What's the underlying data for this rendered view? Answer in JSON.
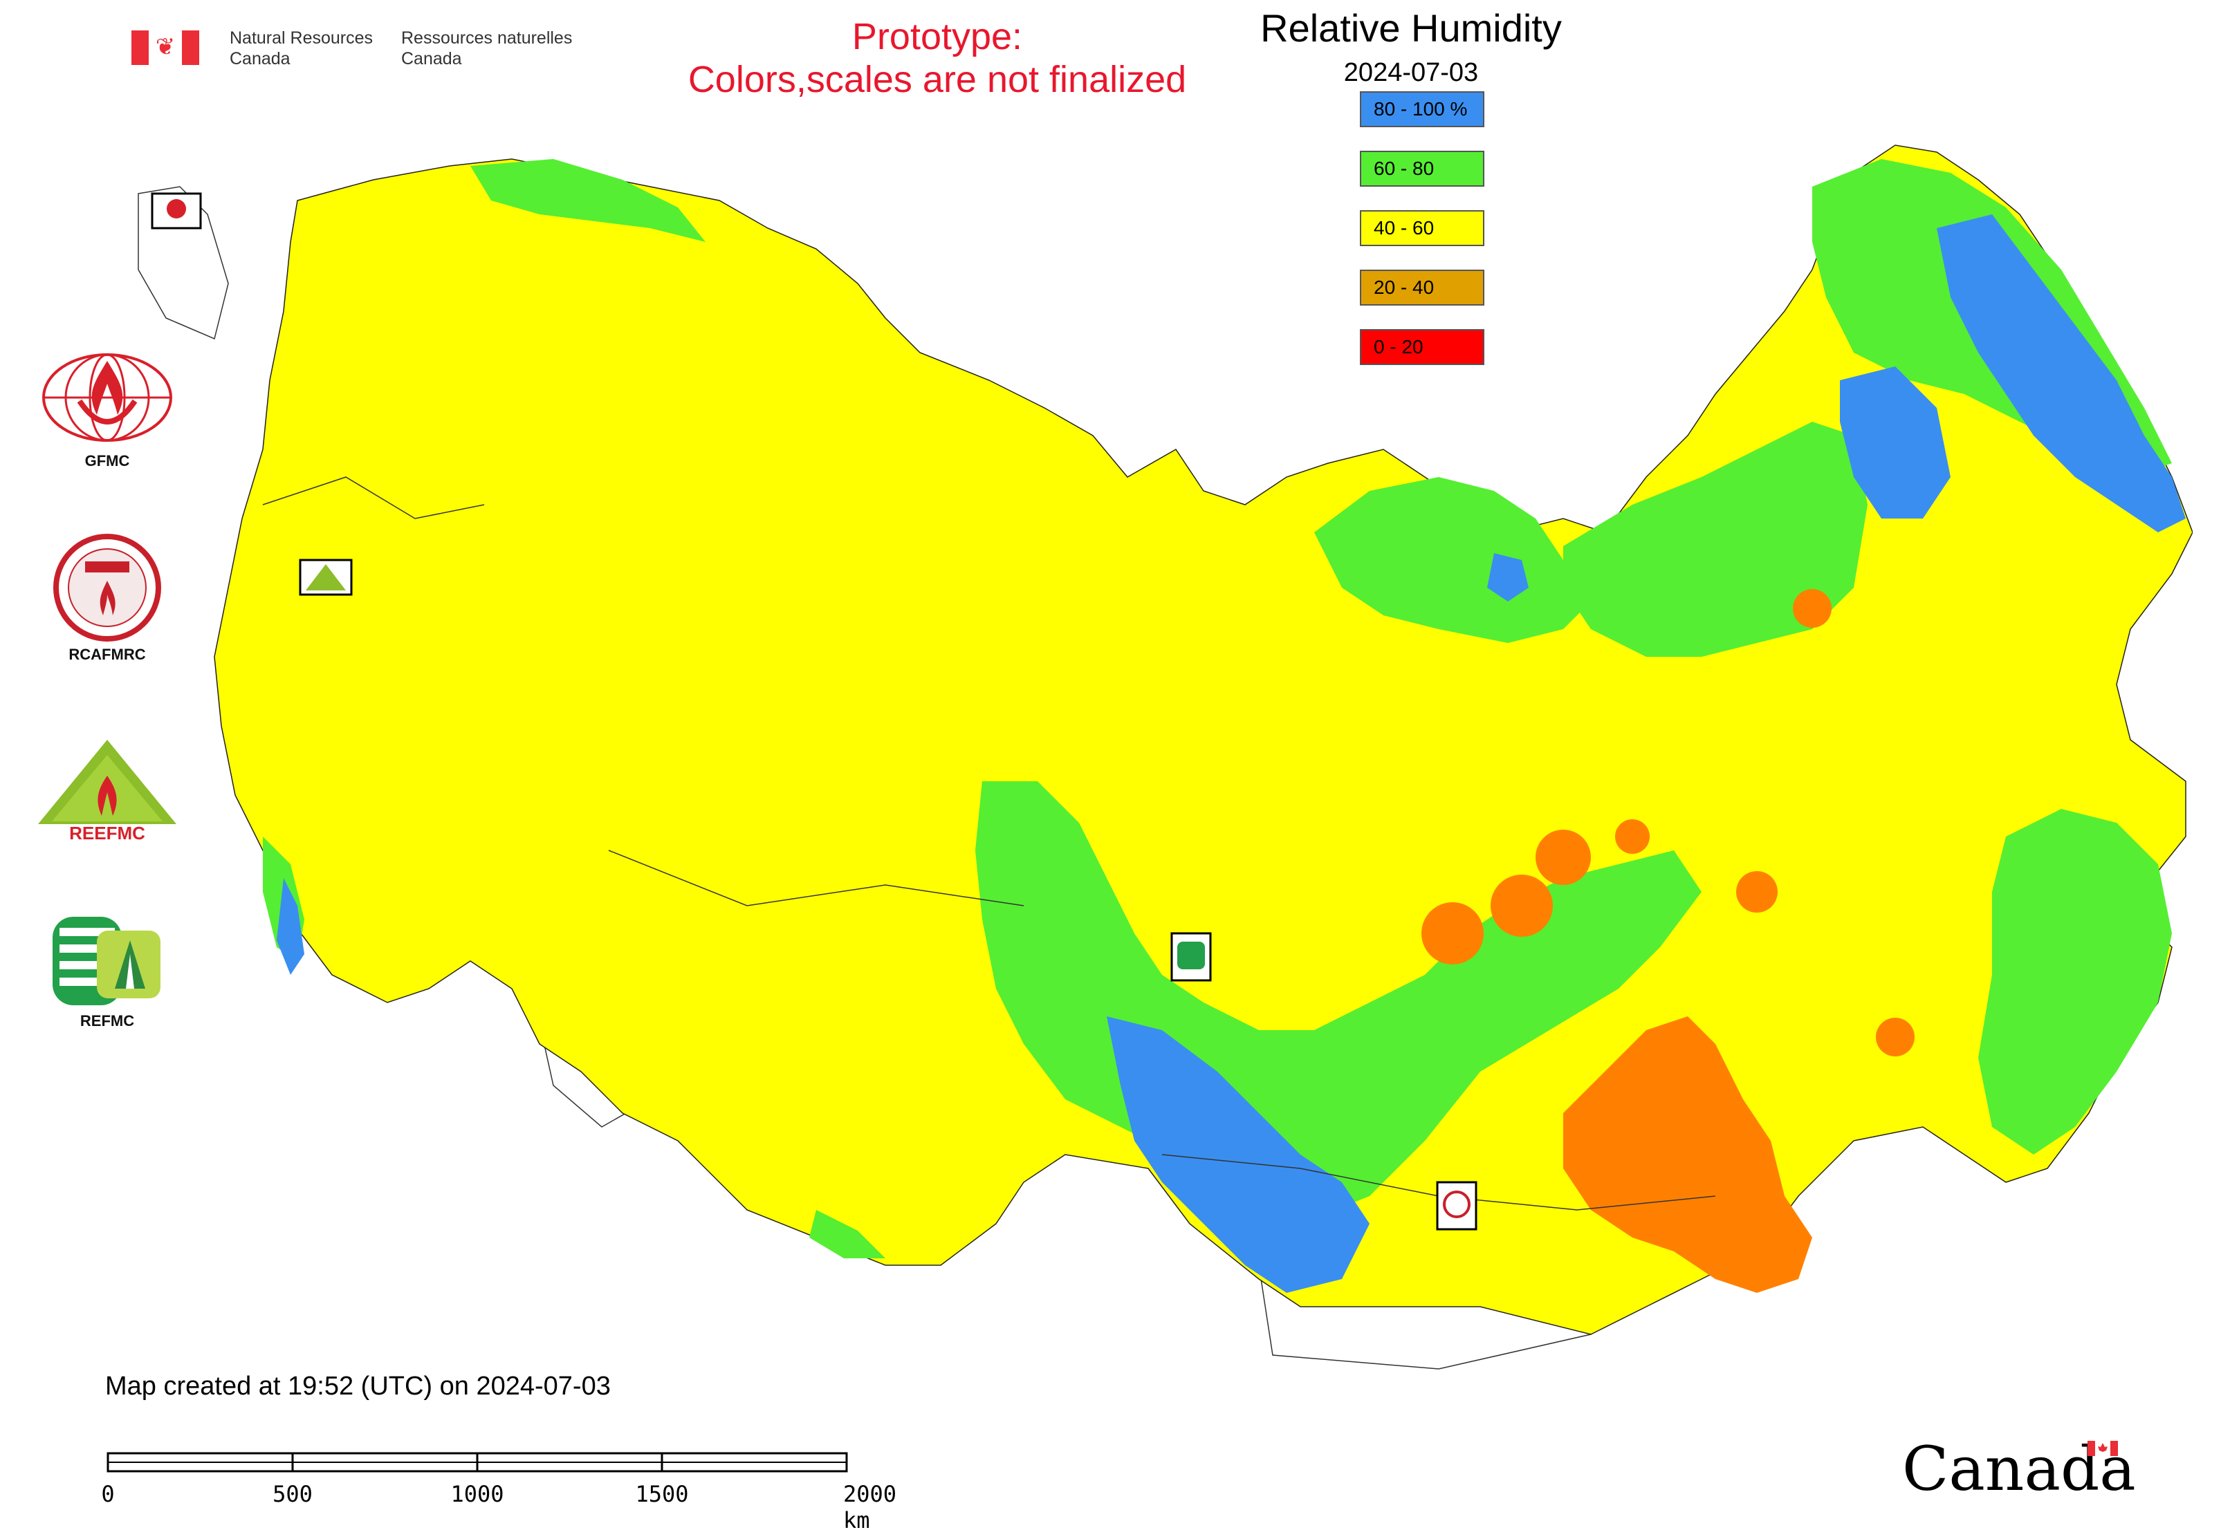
{
  "header": {
    "agency_en": "Natural Resources\nCanada",
    "agency_fr": "Ressources naturelles\nCanada",
    "prototype_line1": "Prototype:",
    "prototype_line2": "Colors,scales are not finalized"
  },
  "map": {
    "title": "Relative Humidity",
    "date": "2024-07-03",
    "legend": [
      {
        "label": "80 - 100 %",
        "color": "#3a8ef0"
      },
      {
        "label": "60 - 80",
        "color": "#55ee33"
      },
      {
        "label": "40 - 60",
        "color": "#ffff00"
      },
      {
        "label": "20 - 40",
        "color": "#e0a000"
      },
      {
        "label": "0 - 20",
        "color": "#ff0000"
      }
    ],
    "station_markers": [
      {
        "name": "GFMC"
      },
      {
        "name": "REEFMC"
      },
      {
        "name": "REFMC"
      },
      {
        "name": "RCAFMRC"
      }
    ]
  },
  "logos": [
    {
      "label": "GFMC",
      "icon": "gfmc-logo-icon"
    },
    {
      "label": "RCAFMRC",
      "icon": "rcafmrc-logo-icon"
    },
    {
      "label": "",
      "icon": "reefmc-logo-icon"
    },
    {
      "label": "REFMC",
      "icon": "refmc-logo-icon"
    }
  ],
  "footer": {
    "created": "Map created at 19:52 (UTC) on 2024-07-03",
    "scale_ticks": [
      "0",
      "500",
      "1000",
      "1500",
      "2000 km"
    ],
    "wordmark": "Canada"
  }
}
